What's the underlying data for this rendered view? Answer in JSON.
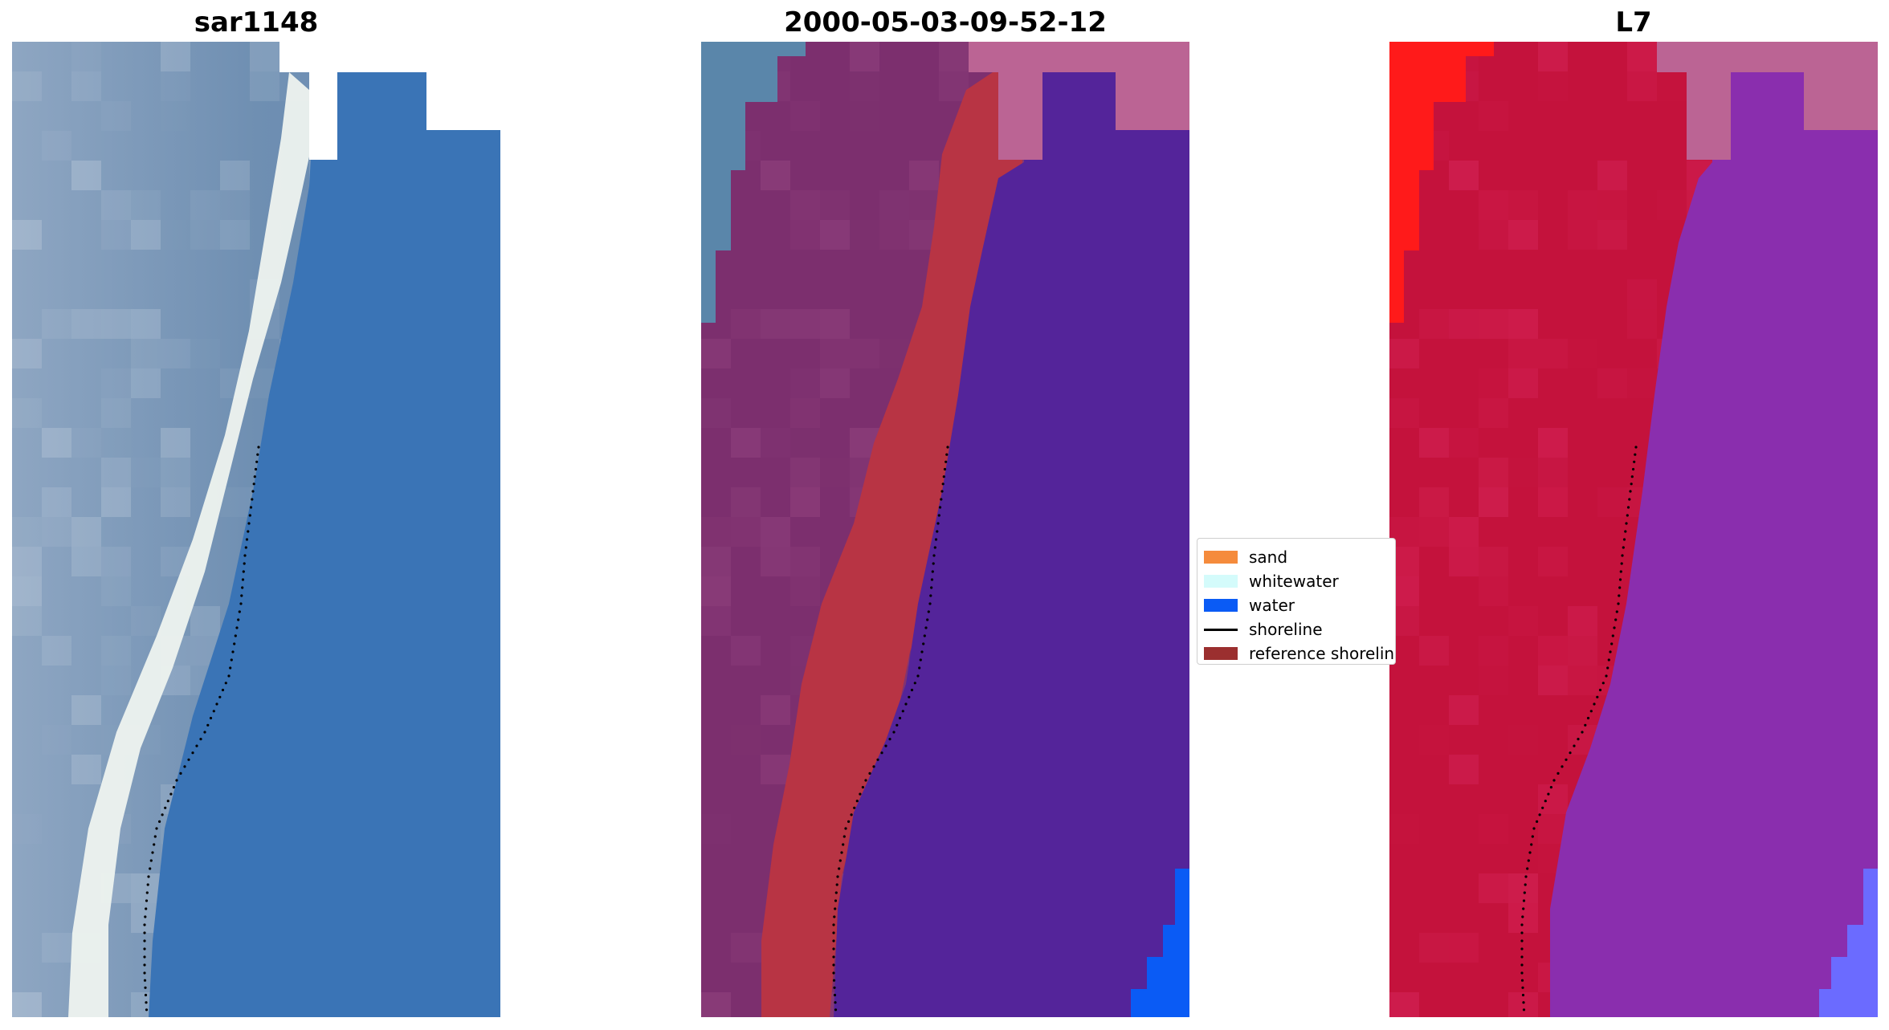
{
  "panels": [
    {
      "title": "sar1148",
      "scene": "rgb-image"
    },
    {
      "title": "2000-05-03-09-52-12",
      "scene": "classified-image"
    },
    {
      "title": "L7",
      "scene": "mndwi-image"
    }
  ],
  "legend": {
    "items": [
      {
        "label": "sand",
        "color": "#f58b3c",
        "kind": "patch"
      },
      {
        "label": "whitewater",
        "color": "#d4fbfb",
        "kind": "patch"
      },
      {
        "label": "water",
        "color": "#0a5bf5",
        "kind": "patch"
      },
      {
        "label": "shoreline",
        "color": "#000000",
        "kind": "line"
      },
      {
        "label": "reference shoreline",
        "color": "#9b2f2f",
        "kind": "patch"
      }
    ]
  },
  "colors": {
    "rgb_land": "#6f8fb2",
    "rgb_water": "#3a74b6",
    "rgb_whitewater": "#f4f7f4",
    "class_land": "#7c2f6e",
    "class_sand_overlay": "#b83444",
    "class_water": "#54249a",
    "class_nodata": "#bb6494",
    "class_rgb_land": "#5a86aa",
    "index_land": "#c4123c",
    "index_water": "#8a2eae",
    "index_bright_red": "#ff1a1a",
    "index_nodata": "#bb6494",
    "index_blue": "#6b6bff",
    "shoreline": "#000000"
  }
}
